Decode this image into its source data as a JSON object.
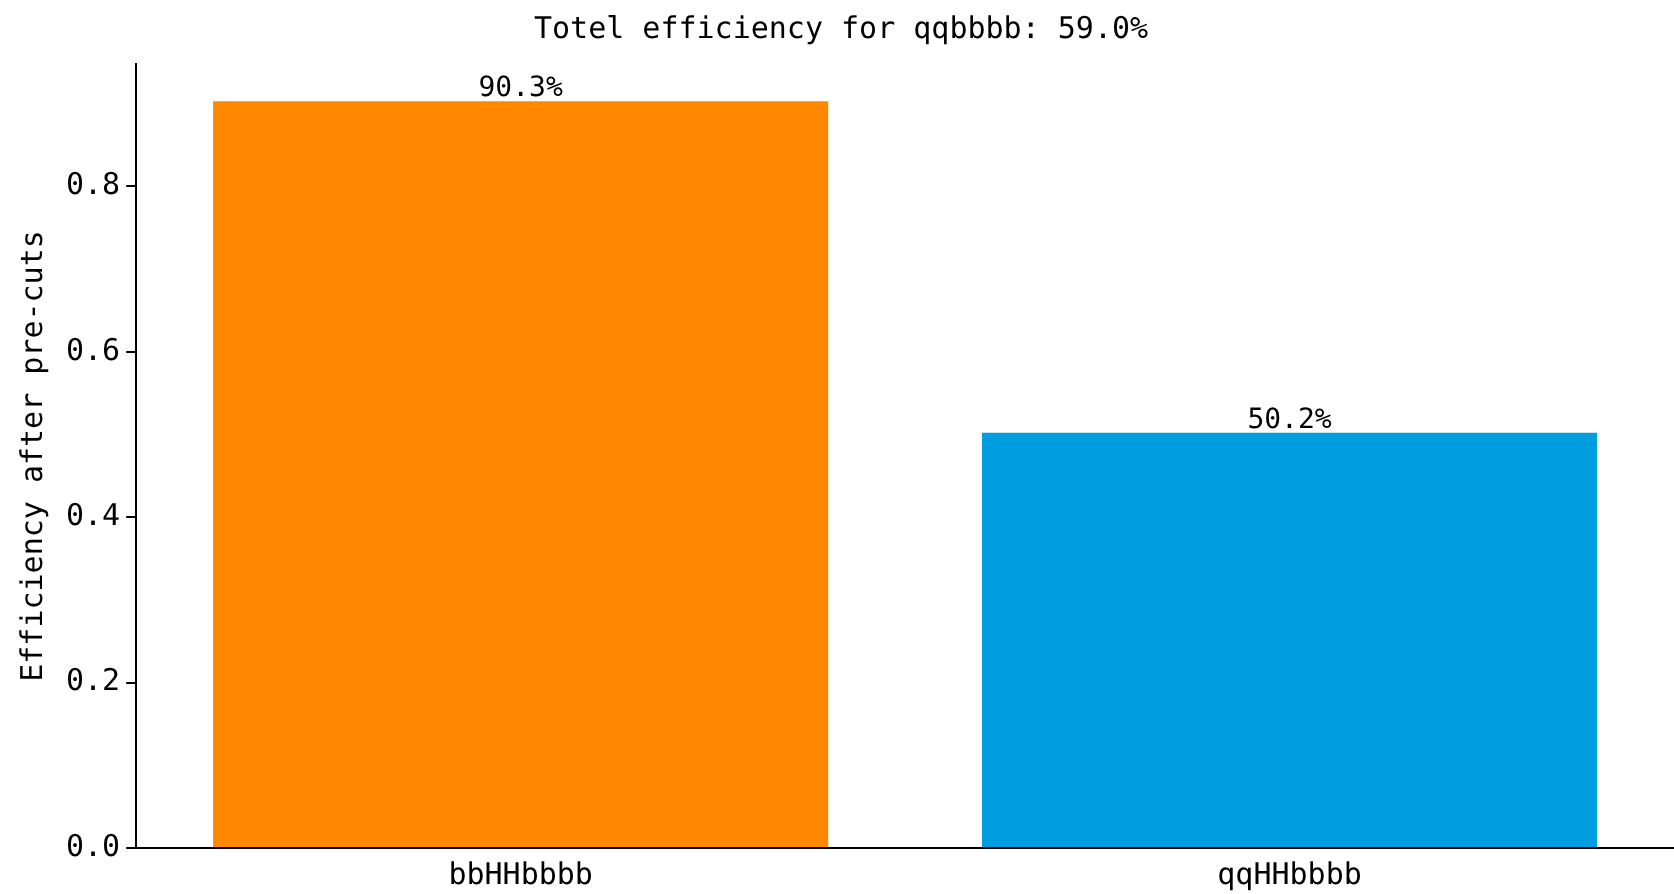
{
  "chart_data": {
    "type": "bar",
    "title": "Totel efficiency for qqbbbb: 59.0%",
    "ylabel": "Efficiency after pre-cuts",
    "categories": [
      "bbHHbbbb",
      "qqHHbbbb"
    ],
    "values": [
      0.903,
      0.502
    ],
    "colors": [
      "#ff8800",
      "#009ee0"
    ],
    "value_labels": [
      "90.3%",
      "50.2%"
    ],
    "ylim": [
      0,
      0.948
    ],
    "yticks": [
      {
        "value": 0,
        "label": "0.0"
      },
      0.2,
      0.4,
      0.6,
      0.8
    ],
    "grid": false,
    "legend": false
  }
}
